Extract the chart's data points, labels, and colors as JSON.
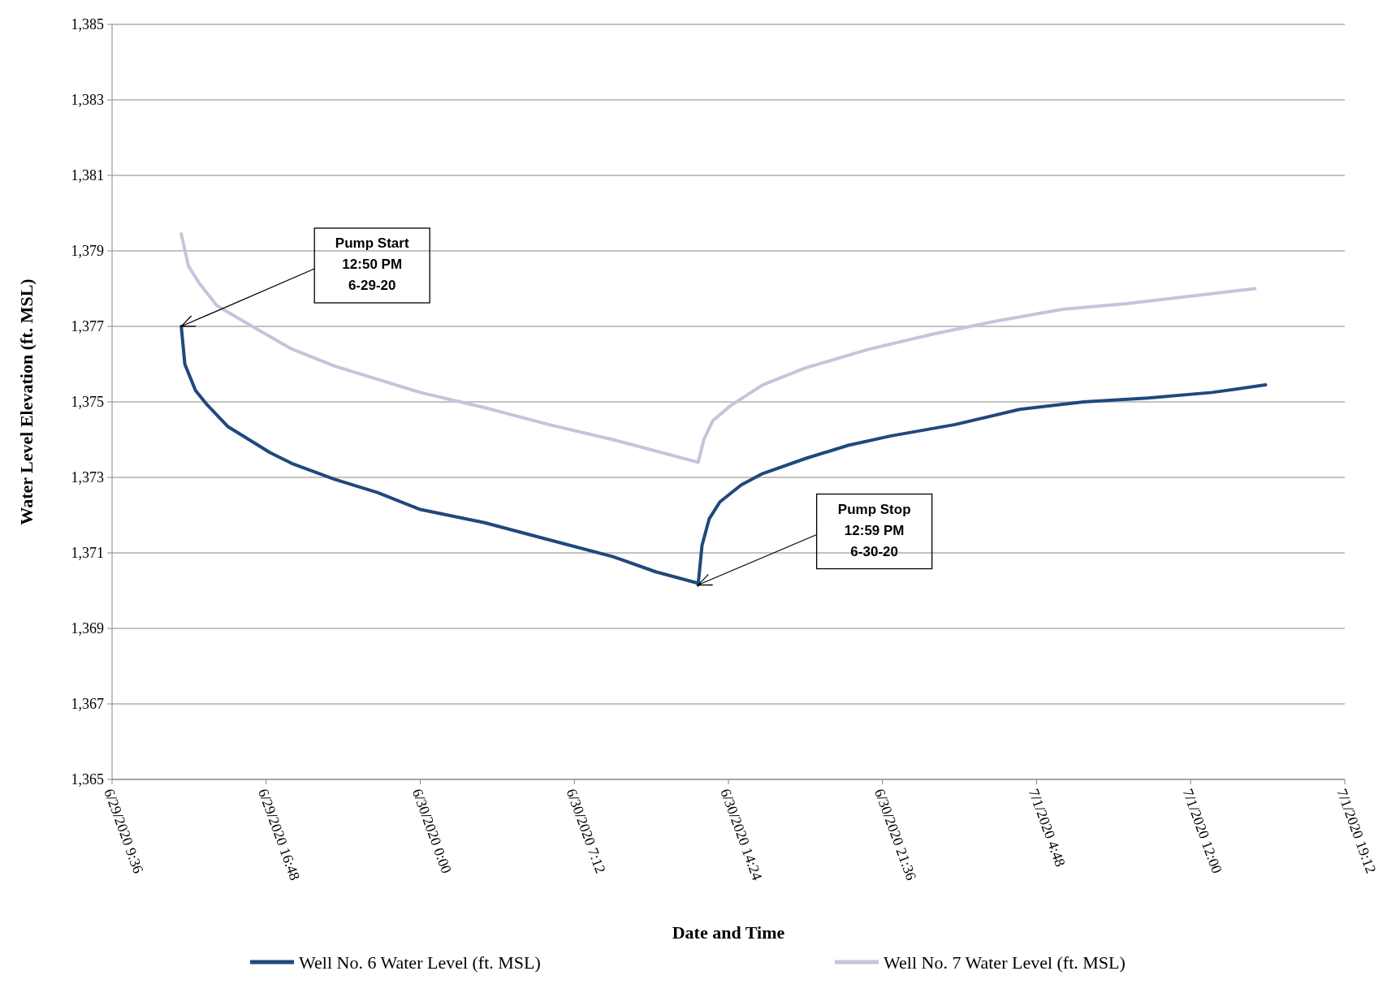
{
  "chart_data": {
    "type": "line",
    "xlabel": "Date and Time",
    "ylabel": "Water Level Elevation (ft. MSL)",
    "xlim": [
      "2020-06-29T09:36",
      "2020-07-01T19:12"
    ],
    "xticks": [
      {
        "value": "2020-06-29T09:36",
        "label": "6/29/2020 9:36"
      },
      {
        "value": "2020-06-29T16:48",
        "label": "6/29/2020 16:48"
      },
      {
        "value": "2020-06-30T00:00",
        "label": "6/30/2020 0:00"
      },
      {
        "value": "2020-06-30T07:12",
        "label": "6/30/2020 7:12"
      },
      {
        "value": "2020-06-30T14:24",
        "label": "6/30/2020 14:24"
      },
      {
        "value": "2020-06-30T21:36",
        "label": "6/30/2020 21:36"
      },
      {
        "value": "2020-07-01T04:48",
        "label": "7/1/2020 4:48"
      },
      {
        "value": "2020-07-01T12:00",
        "label": "7/1/2020 12:00"
      },
      {
        "value": "2020-07-01T19:12",
        "label": "7/1/2020 19:12"
      }
    ],
    "ylim": [
      1365,
      1385
    ],
    "yticks": [
      {
        "value": 1365,
        "label": "1,365"
      },
      {
        "value": 1367,
        "label": "1,367"
      },
      {
        "value": 1369,
        "label": "1,369"
      },
      {
        "value": 1371,
        "label": "1,371"
      },
      {
        "value": 1373,
        "label": "1,373"
      },
      {
        "value": 1375,
        "label": "1,375"
      },
      {
        "value": 1377,
        "label": "1,377"
      },
      {
        "value": 1379,
        "label": "1,379"
      },
      {
        "value": 1381,
        "label": "1,381"
      },
      {
        "value": 1383,
        "label": "1,383"
      },
      {
        "value": 1385,
        "label": "1,385"
      }
    ],
    "grid": "y",
    "legend": "bottom",
    "marker": "none",
    "line_style": "solid",
    "series": [
      {
        "name": "Well No. 6 Water Level (ft. MSL)",
        "color": "#1f497d",
        "x": [
          "2020-06-29T12:50",
          "2020-06-29T13:00",
          "2020-06-29T13:30",
          "2020-06-29T14:00",
          "2020-06-29T15:00",
          "2020-06-29T16:00",
          "2020-06-29T17:00",
          "2020-06-29T18:00",
          "2020-06-29T20:00",
          "2020-06-29T22:00",
          "2020-06-30T00:00",
          "2020-06-30T03:00",
          "2020-06-30T06:00",
          "2020-06-30T09:00",
          "2020-06-30T11:00",
          "2020-06-30T12:58",
          "2020-06-30T12:59",
          "2020-06-30T13:10",
          "2020-06-30T13:30",
          "2020-06-30T14:00",
          "2020-06-30T15:00",
          "2020-06-30T16:00",
          "2020-06-30T18:00",
          "2020-06-30T20:00",
          "2020-06-30T22:00",
          "2020-07-01T01:00",
          "2020-07-01T04:00",
          "2020-07-01T07:00",
          "2020-07-01T10:00",
          "2020-07-01T13:00",
          "2020-07-01T15:30"
        ],
        "values": [
          1377.0,
          1376.0,
          1375.3,
          1374.95,
          1374.35,
          1374.0,
          1373.65,
          1373.37,
          1372.95,
          1372.6,
          1372.15,
          1371.8,
          1371.35,
          1370.9,
          1370.5,
          1370.2,
          1370.15,
          1371.2,
          1371.9,
          1372.35,
          1372.8,
          1373.1,
          1373.5,
          1373.85,
          1374.1,
          1374.4,
          1374.8,
          1375.0,
          1375.1,
          1375.25,
          1375.45
        ]
      },
      {
        "name": "Well No. 7 Water Level (ft. MSL)",
        "color": "#ccc1da",
        "x": [
          "2020-06-29T12:50",
          "2020-06-29T13:10",
          "2020-06-29T13:40",
          "2020-06-29T14:30",
          "2020-06-29T16:00",
          "2020-06-29T18:00",
          "2020-06-29T20:00",
          "2020-06-29T22:00",
          "2020-06-30T00:00",
          "2020-06-30T03:00",
          "2020-06-30T06:00",
          "2020-06-30T09:00",
          "2020-06-30T12:59",
          "2020-06-30T13:15",
          "2020-06-30T13:40",
          "2020-06-30T14:30",
          "2020-06-30T16:00",
          "2020-06-30T18:00",
          "2020-06-30T21:00",
          "2020-07-01T00:00",
          "2020-07-01T03:00",
          "2020-07-01T06:00",
          "2020-07-01T09:00",
          "2020-07-01T12:00",
          "2020-07-01T15:00"
        ],
        "values": [
          1379.45,
          1378.6,
          1378.15,
          1377.55,
          1377.05,
          1376.4,
          1375.95,
          1375.6,
          1375.25,
          1374.85,
          1374.4,
          1374.0,
          1373.4,
          1374.0,
          1374.5,
          1374.9,
          1375.45,
          1375.9,
          1376.4,
          1376.8,
          1377.15,
          1377.45,
          1377.6,
          1377.8,
          1378.0
        ]
      }
    ],
    "annotations": [
      "Pump Start\n12:50 PM\n6-29-20",
      "Pump Stop\n12:59 PM\n6-30-20"
    ]
  }
}
